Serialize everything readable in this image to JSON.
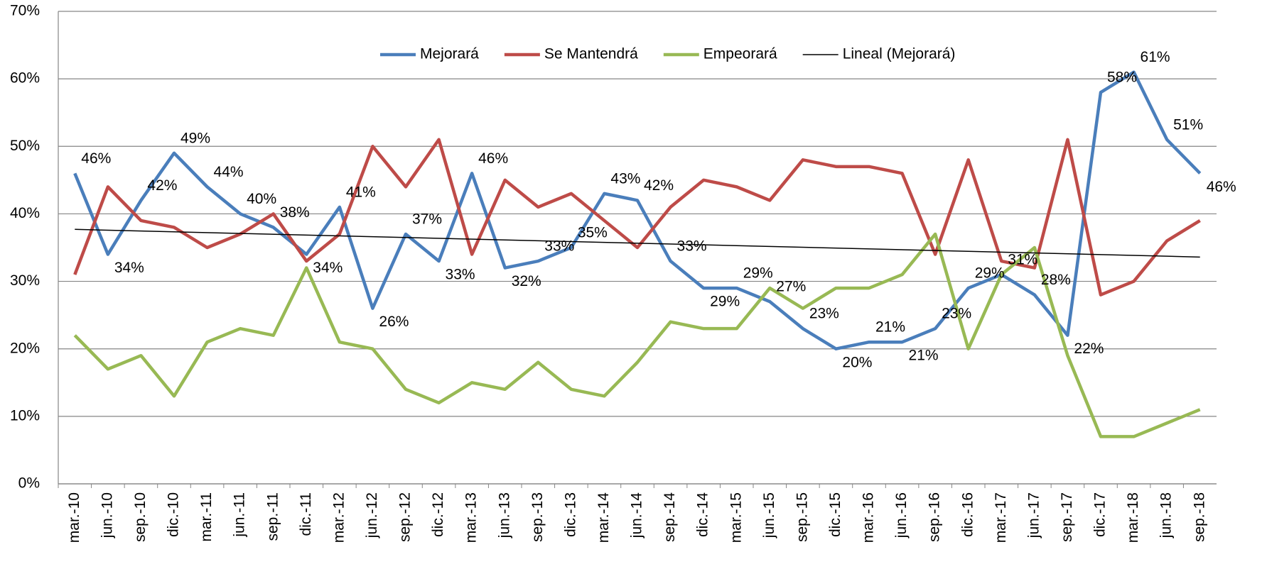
{
  "chart_data": {
    "type": "line",
    "categories": [
      "mar.-10",
      "jun.-10",
      "sep.-10",
      "dic.-10",
      "mar.-11",
      "jun.-11",
      "sep.-11",
      "dic.-11",
      "mar.-12",
      "jun.-12",
      "sep.-12",
      "dic.-12",
      "mar.-13",
      "jun.-13",
      "sep.-13",
      "dic.-13",
      "mar.-14",
      "jun.-14",
      "sep.-14",
      "dic.-14",
      "mar.-15",
      "jun.-15",
      "sep.-15",
      "dic.-15",
      "mar.-16",
      "jun.-16",
      "sep.-16",
      "dic.-16",
      "mar.-17",
      "jun.-17",
      "sep.-17",
      "dic.-17",
      "mar.-18",
      "jun.-18",
      "sep.-18"
    ],
    "series": [
      {
        "name": "Mejorará",
        "color": "#4a7ebb",
        "values": [
          46,
          34,
          42,
          49,
          44,
          40,
          38,
          34,
          41,
          26,
          37,
          33,
          46,
          32,
          33,
          35,
          43,
          42,
          33,
          29,
          29,
          27,
          23,
          20,
          21,
          21,
          23,
          29,
          31,
          28,
          22,
          58,
          61,
          51,
          46
        ],
        "value_labels": [
          "46%",
          "34%",
          "42%",
          "49%",
          "44%",
          "40%",
          "38%",
          "34%",
          "41%",
          "26%",
          "37%",
          "33%",
          "46%",
          "32%",
          "33%",
          "35%",
          "43%",
          "42%",
          "33%",
          "29%",
          "29%",
          "27%",
          "23%",
          "20%",
          "21%",
          "21%",
          "23%",
          "29%",
          "31%",
          "28%",
          "22%",
          "58%",
          "61%",
          "51%",
          "46%"
        ]
      },
      {
        "name": "Se Mantendrá",
        "color": "#be4b48",
        "values": [
          31,
          44,
          39,
          38,
          35,
          37,
          40,
          33,
          37,
          50,
          44,
          51,
          34,
          45,
          41,
          43,
          39,
          35,
          41,
          45,
          44,
          42,
          48,
          47,
          47,
          46,
          34,
          48,
          33,
          32,
          51,
          28,
          30,
          36,
          39
        ]
      },
      {
        "name": "Empeorará",
        "color": "#98b954",
        "values": [
          22,
          17,
          19,
          13,
          21,
          23,
          22,
          32,
          21,
          20,
          14,
          12,
          15,
          14,
          18,
          14,
          13,
          18,
          24,
          23,
          23,
          29,
          26,
          29,
          29,
          31,
          37,
          20,
          31,
          35,
          19,
          7,
          7,
          9,
          11
        ]
      }
    ],
    "trendline": {
      "name": "Lineal (Mejorará)",
      "color": "#000000",
      "values": [
        37.7,
        33.6
      ]
    },
    "ylim": [
      0,
      70
    ],
    "yticks": [
      {
        "value": 0,
        "label": "0%"
      },
      {
        "value": 10,
        "label": "10%"
      },
      {
        "value": 20,
        "label": "20%"
      },
      {
        "value": 30,
        "label": "30%"
      },
      {
        "value": 40,
        "label": "40%"
      },
      {
        "value": 50,
        "label": "50%"
      },
      {
        "value": 60,
        "label": "60%"
      },
      {
        "value": 70,
        "label": "70%"
      }
    ],
    "grid": true
  }
}
